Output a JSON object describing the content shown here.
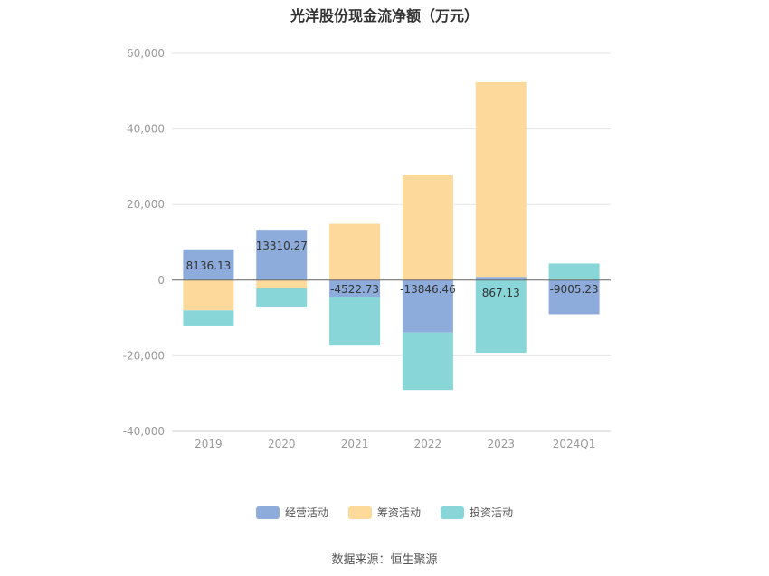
{
  "chart_data": {
    "type": "bar",
    "stacked": true,
    "title": "光洋股份现金流净额（万元）",
    "categories": [
      "2019",
      "2020",
      "2021",
      "2022",
      "2023",
      "2024Q1"
    ],
    "ylim": [
      -40000,
      60000
    ],
    "yticks": [
      60000,
      40000,
      20000,
      0,
      -20000,
      -40000
    ],
    "ytick_labels": [
      "60,000",
      "40,000",
      "20,000",
      "0",
      "-20,000",
      "-40,000"
    ],
    "grid": true,
    "legend_position": "bottom",
    "series": [
      {
        "name": "经营活动",
        "color": "#8eacdb",
        "values": [
          8136.13,
          13310.27,
          -4522.73,
          -13846.46,
          867.13,
          -9005.23
        ],
        "labels": [
          "8136.13",
          "13310.27",
          "-4522.73",
          "-13846.46",
          "867.13",
          "-9005.23"
        ]
      },
      {
        "name": "筹资活动",
        "color": "#fdd99b",
        "values": [
          -8000,
          -2200,
          14900,
          27700,
          51500,
          0
        ]
      },
      {
        "name": "投资活动",
        "color": "#89d6d9",
        "values": [
          -4000,
          -5000,
          -12800,
          -15200,
          -19200,
          4400
        ]
      }
    ]
  },
  "source": "数据来源：恒生聚源"
}
